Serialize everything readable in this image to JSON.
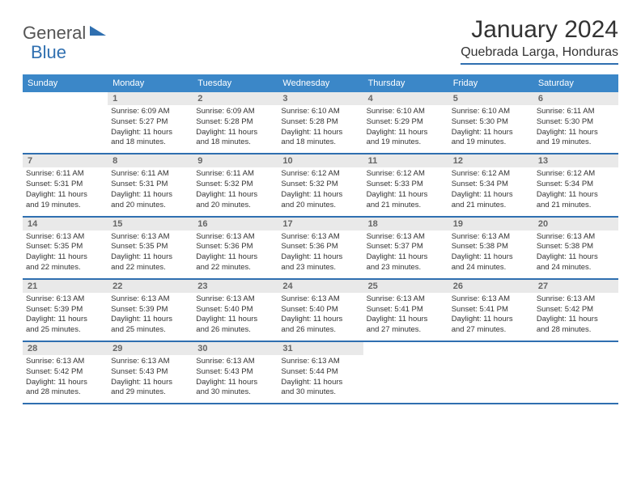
{
  "brand": {
    "part1": "General",
    "part2": "Blue"
  },
  "title": "January 2024",
  "location": "Quebrada Larga, Honduras",
  "colors": {
    "header_bg": "#3b87c8",
    "rule": "#2f6fb0",
    "daybg": "#e9e9e9"
  },
  "day_names": [
    "Sunday",
    "Monday",
    "Tuesday",
    "Wednesday",
    "Thursday",
    "Friday",
    "Saturday"
  ],
  "weeks": [
    [
      null,
      {
        "n": "1",
        "sr": "Sunrise: 6:09 AM",
        "ss": "Sunset: 5:27 PM",
        "d1": "Daylight: 11 hours",
        "d2": "and 18 minutes."
      },
      {
        "n": "2",
        "sr": "Sunrise: 6:09 AM",
        "ss": "Sunset: 5:28 PM",
        "d1": "Daylight: 11 hours",
        "d2": "and 18 minutes."
      },
      {
        "n": "3",
        "sr": "Sunrise: 6:10 AM",
        "ss": "Sunset: 5:28 PM",
        "d1": "Daylight: 11 hours",
        "d2": "and 18 minutes."
      },
      {
        "n": "4",
        "sr": "Sunrise: 6:10 AM",
        "ss": "Sunset: 5:29 PM",
        "d1": "Daylight: 11 hours",
        "d2": "and 19 minutes."
      },
      {
        "n": "5",
        "sr": "Sunrise: 6:10 AM",
        "ss": "Sunset: 5:30 PM",
        "d1": "Daylight: 11 hours",
        "d2": "and 19 minutes."
      },
      {
        "n": "6",
        "sr": "Sunrise: 6:11 AM",
        "ss": "Sunset: 5:30 PM",
        "d1": "Daylight: 11 hours",
        "d2": "and 19 minutes."
      }
    ],
    [
      {
        "n": "7",
        "sr": "Sunrise: 6:11 AM",
        "ss": "Sunset: 5:31 PM",
        "d1": "Daylight: 11 hours",
        "d2": "and 19 minutes."
      },
      {
        "n": "8",
        "sr": "Sunrise: 6:11 AM",
        "ss": "Sunset: 5:31 PM",
        "d1": "Daylight: 11 hours",
        "d2": "and 20 minutes."
      },
      {
        "n": "9",
        "sr": "Sunrise: 6:11 AM",
        "ss": "Sunset: 5:32 PM",
        "d1": "Daylight: 11 hours",
        "d2": "and 20 minutes."
      },
      {
        "n": "10",
        "sr": "Sunrise: 6:12 AM",
        "ss": "Sunset: 5:32 PM",
        "d1": "Daylight: 11 hours",
        "d2": "and 20 minutes."
      },
      {
        "n": "11",
        "sr": "Sunrise: 6:12 AM",
        "ss": "Sunset: 5:33 PM",
        "d1": "Daylight: 11 hours",
        "d2": "and 21 minutes."
      },
      {
        "n": "12",
        "sr": "Sunrise: 6:12 AM",
        "ss": "Sunset: 5:34 PM",
        "d1": "Daylight: 11 hours",
        "d2": "and 21 minutes."
      },
      {
        "n": "13",
        "sr": "Sunrise: 6:12 AM",
        "ss": "Sunset: 5:34 PM",
        "d1": "Daylight: 11 hours",
        "d2": "and 21 minutes."
      }
    ],
    [
      {
        "n": "14",
        "sr": "Sunrise: 6:13 AM",
        "ss": "Sunset: 5:35 PM",
        "d1": "Daylight: 11 hours",
        "d2": "and 22 minutes."
      },
      {
        "n": "15",
        "sr": "Sunrise: 6:13 AM",
        "ss": "Sunset: 5:35 PM",
        "d1": "Daylight: 11 hours",
        "d2": "and 22 minutes."
      },
      {
        "n": "16",
        "sr": "Sunrise: 6:13 AM",
        "ss": "Sunset: 5:36 PM",
        "d1": "Daylight: 11 hours",
        "d2": "and 22 minutes."
      },
      {
        "n": "17",
        "sr": "Sunrise: 6:13 AM",
        "ss": "Sunset: 5:36 PM",
        "d1": "Daylight: 11 hours",
        "d2": "and 23 minutes."
      },
      {
        "n": "18",
        "sr": "Sunrise: 6:13 AM",
        "ss": "Sunset: 5:37 PM",
        "d1": "Daylight: 11 hours",
        "d2": "and 23 minutes."
      },
      {
        "n": "19",
        "sr": "Sunrise: 6:13 AM",
        "ss": "Sunset: 5:38 PM",
        "d1": "Daylight: 11 hours",
        "d2": "and 24 minutes."
      },
      {
        "n": "20",
        "sr": "Sunrise: 6:13 AM",
        "ss": "Sunset: 5:38 PM",
        "d1": "Daylight: 11 hours",
        "d2": "and 24 minutes."
      }
    ],
    [
      {
        "n": "21",
        "sr": "Sunrise: 6:13 AM",
        "ss": "Sunset: 5:39 PM",
        "d1": "Daylight: 11 hours",
        "d2": "and 25 minutes."
      },
      {
        "n": "22",
        "sr": "Sunrise: 6:13 AM",
        "ss": "Sunset: 5:39 PM",
        "d1": "Daylight: 11 hours",
        "d2": "and 25 minutes."
      },
      {
        "n": "23",
        "sr": "Sunrise: 6:13 AM",
        "ss": "Sunset: 5:40 PM",
        "d1": "Daylight: 11 hours",
        "d2": "and 26 minutes."
      },
      {
        "n": "24",
        "sr": "Sunrise: 6:13 AM",
        "ss": "Sunset: 5:40 PM",
        "d1": "Daylight: 11 hours",
        "d2": "and 26 minutes."
      },
      {
        "n": "25",
        "sr": "Sunrise: 6:13 AM",
        "ss": "Sunset: 5:41 PM",
        "d1": "Daylight: 11 hours",
        "d2": "and 27 minutes."
      },
      {
        "n": "26",
        "sr": "Sunrise: 6:13 AM",
        "ss": "Sunset: 5:41 PM",
        "d1": "Daylight: 11 hours",
        "d2": "and 27 minutes."
      },
      {
        "n": "27",
        "sr": "Sunrise: 6:13 AM",
        "ss": "Sunset: 5:42 PM",
        "d1": "Daylight: 11 hours",
        "d2": "and 28 minutes."
      }
    ],
    [
      {
        "n": "28",
        "sr": "Sunrise: 6:13 AM",
        "ss": "Sunset: 5:42 PM",
        "d1": "Daylight: 11 hours",
        "d2": "and 28 minutes."
      },
      {
        "n": "29",
        "sr": "Sunrise: 6:13 AM",
        "ss": "Sunset: 5:43 PM",
        "d1": "Daylight: 11 hours",
        "d2": "and 29 minutes."
      },
      {
        "n": "30",
        "sr": "Sunrise: 6:13 AM",
        "ss": "Sunset: 5:43 PM",
        "d1": "Daylight: 11 hours",
        "d2": "and 30 minutes."
      },
      {
        "n": "31",
        "sr": "Sunrise: 6:13 AM",
        "ss": "Sunset: 5:44 PM",
        "d1": "Daylight: 11 hours",
        "d2": "and 30 minutes."
      },
      null,
      null,
      null
    ]
  ]
}
